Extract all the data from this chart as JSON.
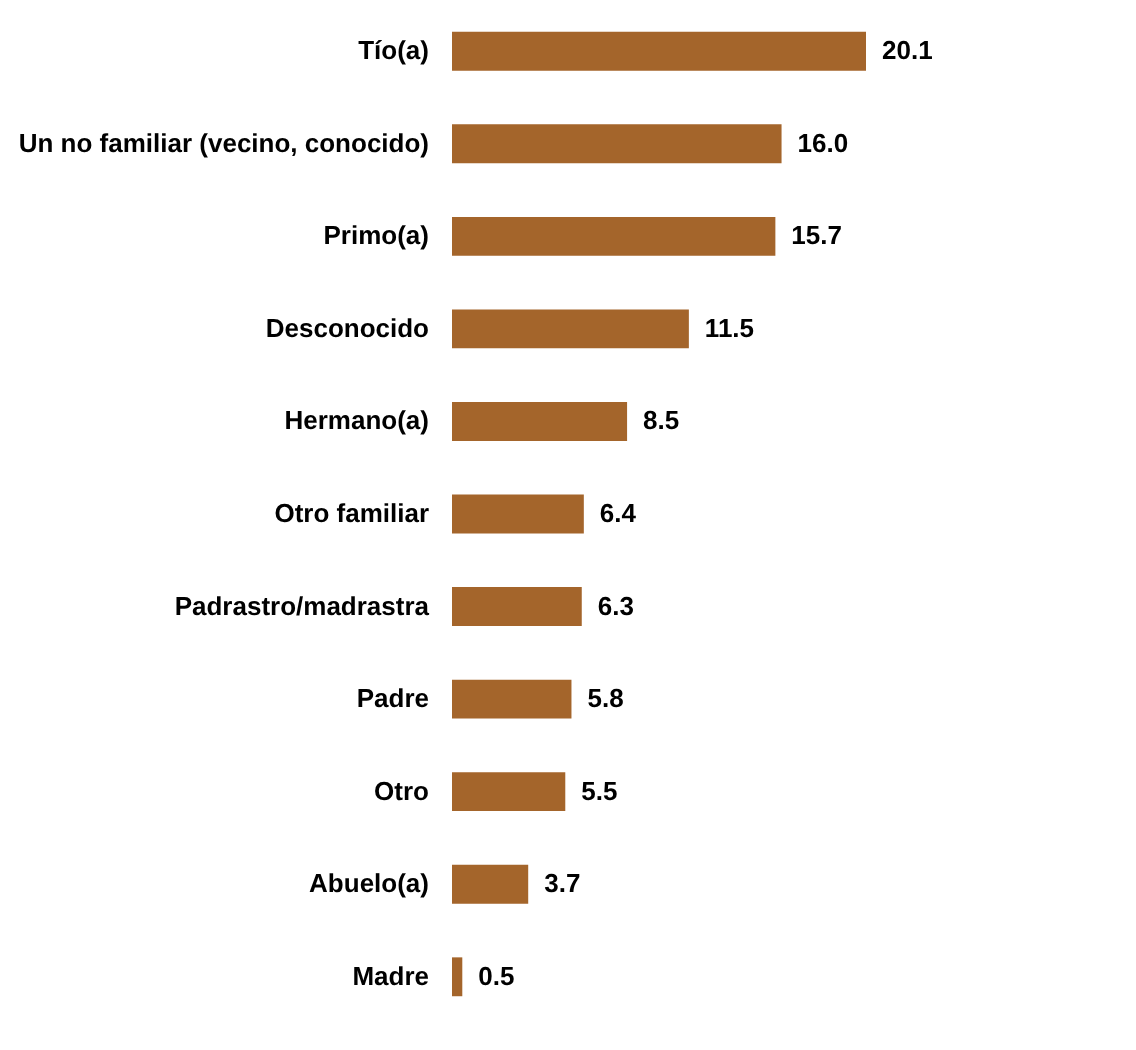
{
  "chart_data": {
    "type": "bar",
    "orientation": "horizontal",
    "categories": [
      "Tío(a)",
      "Un no familiar (vecino, conocido)",
      "Primo(a)",
      "Desconocido",
      "Hermano(a)",
      "Otro familiar",
      "Padrastro/madrastra",
      "Padre",
      "Otro",
      "Abuelo(a)",
      "Madre"
    ],
    "values": [
      20.1,
      16.0,
      15.7,
      11.5,
      8.5,
      6.4,
      6.3,
      5.8,
      5.5,
      3.7,
      0.5
    ],
    "value_labels": [
      "20.1",
      "16.0",
      "15.7",
      "11.5",
      "8.5",
      "6.4",
      "6.3",
      "5.8",
      "5.5",
      "3.7",
      "0.5"
    ],
    "color": "#a4652b"
  }
}
